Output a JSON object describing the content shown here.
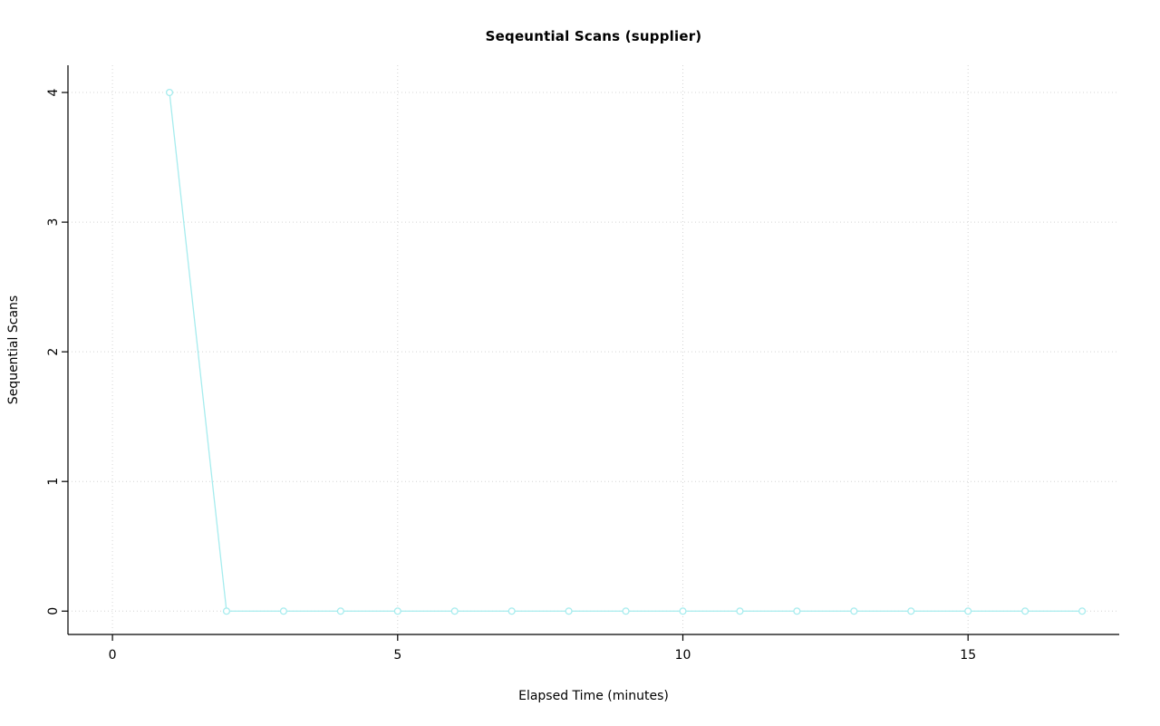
{
  "chart_data": {
    "type": "line",
    "title": "Seqeuntial Scans (supplier)",
    "xlabel": "Elapsed Time (minutes)",
    "ylabel": "Sequential Scans",
    "x": [
      1,
      2,
      3,
      4,
      5,
      6,
      7,
      8,
      9,
      10,
      11,
      12,
      13,
      14,
      15,
      16,
      17
    ],
    "y": [
      4,
      0,
      0,
      0,
      0,
      0,
      0,
      0,
      0,
      0,
      0,
      0,
      0,
      0,
      0,
      0,
      0
    ],
    "xticks": [
      0,
      5,
      10,
      15
    ],
    "yticks": [
      0,
      1,
      2,
      3,
      4
    ],
    "xlim": [
      -0.78,
      17.65
    ],
    "ylim": [
      -0.18,
      4.21
    ],
    "grid": true,
    "legend": "none",
    "marker": "open-circle",
    "line_color": "#a6ecee",
    "grid_color": "#d4d4d4",
    "axis_color": "#000000",
    "text_color": "#000000",
    "background_color": "#ffffff"
  }
}
